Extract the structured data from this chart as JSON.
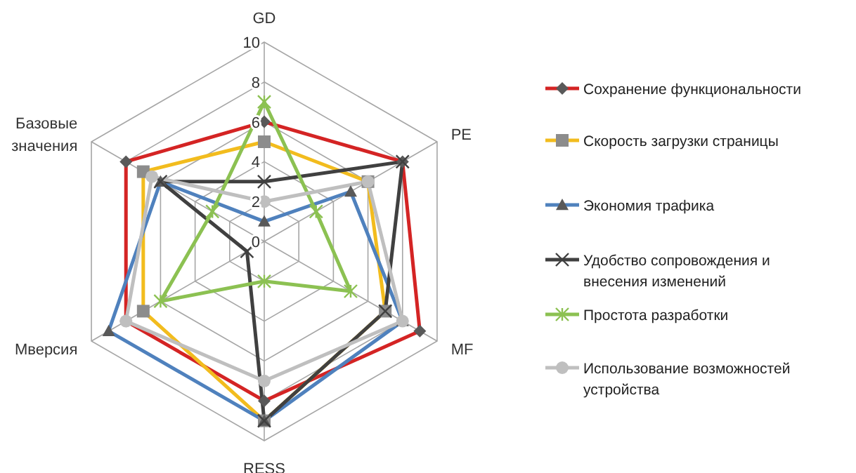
{
  "chart_data": {
    "type": "radar",
    "categories": [
      "GD",
      "PE",
      "MF",
      "RESS",
      "Мверсия",
      "Базовые значения"
    ],
    "ylim": [
      0,
      10
    ],
    "yticks": [
      0,
      2,
      4,
      6,
      8,
      10
    ],
    "grid": true,
    "legend": "right",
    "series": [
      {
        "name": "Сохранение функциональности",
        "color": "#d42424",
        "marker": "diamond",
        "values": [
          6,
          8,
          9,
          8,
          8,
          8
        ]
      },
      {
        "name": "Скорость загрузки страницы",
        "color": "#f2bc1e",
        "marker": "square",
        "values": [
          5,
          6,
          7,
          9,
          7,
          7
        ]
      },
      {
        "name": "Экономия трафика",
        "color": "#4f81bd",
        "marker": "triangle",
        "values": [
          1,
          5,
          8,
          9,
          9,
          6
        ]
      },
      {
        "name": "Удобство сопровождения и внесения изменений",
        "color": "#404040",
        "marker": "cross",
        "values": [
          3,
          8,
          7,
          9,
          1,
          6
        ]
      },
      {
        "name": "Простота разработки",
        "color": "#8cc152",
        "marker": "star",
        "values": [
          7,
          3,
          5,
          2,
          6,
          3
        ]
      },
      {
        "name": "Использование возможностей устройства",
        "color": "#bfbfbf",
        "marker": "circle",
        "values": [
          2,
          6,
          8,
          7,
          8,
          6.5
        ]
      }
    ]
  }
}
